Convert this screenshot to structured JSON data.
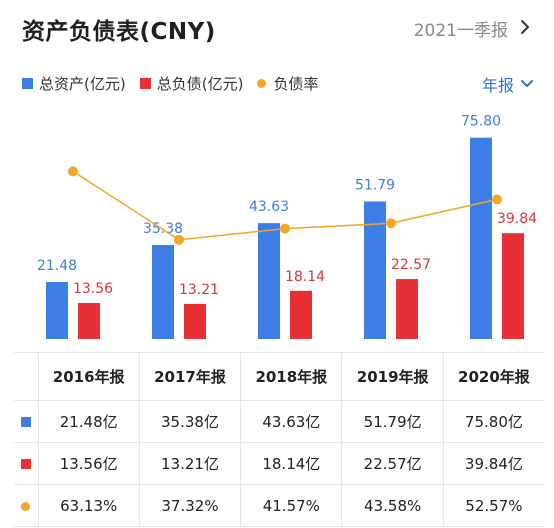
{
  "header": {
    "title": "资产负债表(CNY)",
    "period": "2021一季报"
  },
  "controls": {
    "frequency": "年报"
  },
  "colors": {
    "assets": "#3d7ee6",
    "liabilities": "#e63036",
    "ratio": "#f4a625"
  },
  "chart_data": {
    "type": "bar",
    "categories": [
      "2016年报",
      "2017年报",
      "2018年报",
      "2019年报",
      "2020年报"
    ],
    "series": [
      {
        "name": "总资产(亿元)",
        "kind": "bar",
        "values": [
          21.48,
          35.38,
          43.63,
          51.79,
          75.8
        ],
        "labels": [
          "21.48",
          "35.38",
          "43.63",
          "51.79",
          "75.80"
        ]
      },
      {
        "name": "总负债(亿元)",
        "kind": "bar",
        "values": [
          13.56,
          13.21,
          18.14,
          22.57,
          39.84
        ],
        "labels": [
          "13.56",
          "13.21",
          "18.14",
          "22.57",
          "39.84"
        ]
      },
      {
        "name": "负债率",
        "kind": "line",
        "values": [
          63.13,
          37.32,
          41.57,
          43.58,
          52.57
        ]
      }
    ],
    "ylim": [
      0,
      90
    ],
    "ratio_ylim": [
      0,
      90
    ],
    "grid": false,
    "legend": "top-left"
  },
  "table": {
    "headers": [
      "2016年报",
      "2017年报",
      "2018年报",
      "2019年报",
      "2020年报"
    ],
    "rows": [
      {
        "key": "assets",
        "cells": [
          "21.48亿",
          "35.38亿",
          "43.63亿",
          "51.79亿",
          "75.80亿"
        ]
      },
      {
        "key": "liabilities",
        "cells": [
          "13.56亿",
          "13.21亿",
          "18.14亿",
          "22.57亿",
          "39.84亿"
        ]
      },
      {
        "key": "ratio",
        "cells": [
          "63.13%",
          "37.32%",
          "41.57%",
          "43.58%",
          "52.57%"
        ]
      }
    ]
  }
}
